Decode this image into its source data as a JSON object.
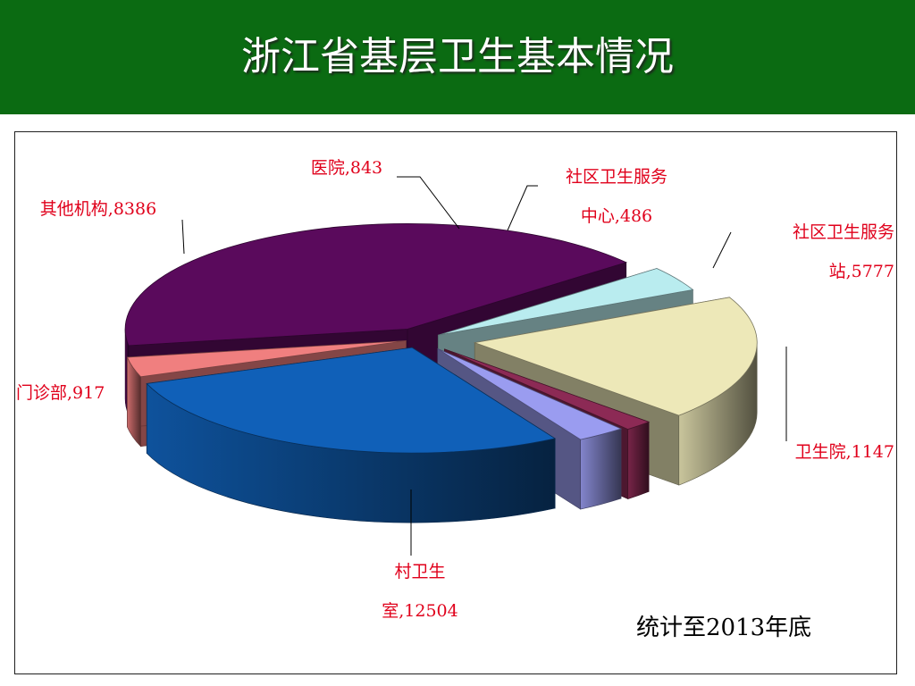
{
  "header": {
    "title": "浙江省基层卫生基本情况"
  },
  "note": "统计至2013年底",
  "chart_data": {
    "type": "pie",
    "title": "浙江省基层卫生基本情况",
    "slices": [
      {
        "name": "村卫生室",
        "value": 12504,
        "color": "#5a0a5c",
        "label_lines": [
          "村卫生",
          "室,12504"
        ]
      },
      {
        "name": "卫生院",
        "value": 1147,
        "color": "#b9ecef",
        "label_lines": [
          "卫生院,1147"
        ]
      },
      {
        "name": "社区卫生服务站",
        "value": 5777,
        "color": "#ede8b8",
        "label_lines": [
          "社区卫生服务",
          "站,5777"
        ]
      },
      {
        "name": "社区卫生服务中心",
        "value": 486,
        "color": "#8c2a55",
        "label_lines": [
          "社区卫生服务",
          "中心,486"
        ]
      },
      {
        "name": "医院",
        "value": 843,
        "color": "#9a9cf0",
        "label_lines": [
          "医院,843"
        ]
      },
      {
        "name": "其他机构",
        "value": 8386,
        "color": "#1060b8",
        "label_lines": [
          "其他机构,8386"
        ]
      },
      {
        "name": "门诊部",
        "value": 917,
        "color": "#f07f7f",
        "label_lines": [
          "门诊部,917"
        ]
      }
    ]
  }
}
